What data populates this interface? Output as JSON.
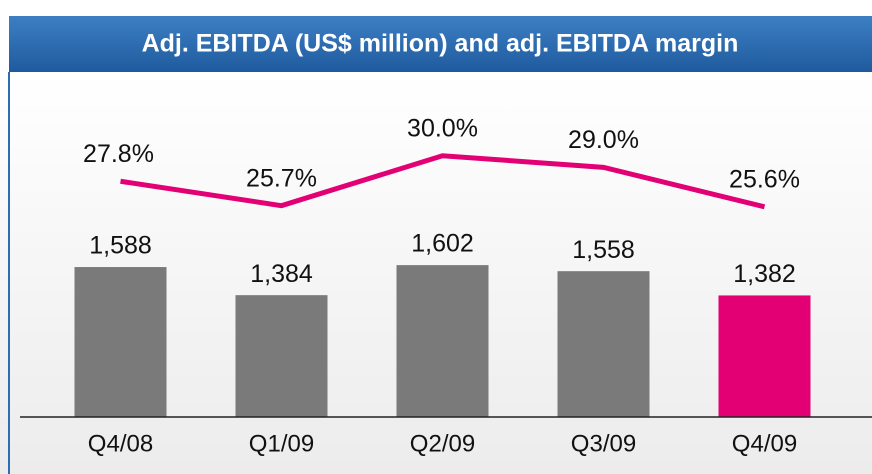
{
  "chart_data": {
    "type": "bar",
    "title": "Adj. EBITDA (US$ million) and adj. EBITDA margin",
    "categories": [
      "Q4/08",
      "Q1/09",
      "Q2/09",
      "Q3/09",
      "Q4/09"
    ],
    "ylim": [
      500,
      2800
    ],
    "y2lim": [
      7.5,
      34.8
    ],
    "series": [
      {
        "name": "Adj. EBITDA",
        "type": "bar",
        "colors": [
          "#7a7a7a",
          "#7a7a7a",
          "#7a7a7a",
          "#7a7a7a",
          "#e20074"
        ],
        "values": [
          1588,
          1384,
          1602,
          1558,
          1382
        ],
        "value_labels": [
          "1,588",
          "1,384",
          "1,602",
          "1,558",
          "1,382"
        ]
      },
      {
        "name": "Adj. EBITDA margin",
        "type": "line",
        "axis": "y2",
        "color": "#e20074",
        "values": [
          27.8,
          25.7,
          30.0,
          29.0,
          25.6
        ],
        "value_labels": [
          "27.8%",
          "25.7%",
          "30.0%",
          "29.0%",
          "25.6%"
        ]
      }
    ]
  }
}
